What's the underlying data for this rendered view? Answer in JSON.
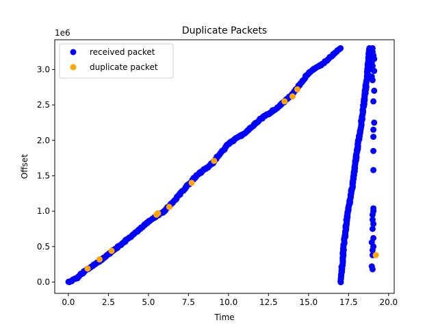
{
  "chart_data": {
    "type": "scatter",
    "title": "Duplicate Packets",
    "xlabel": "Time",
    "ylabel": "Offset",
    "y_multiplier": "1e6",
    "xlim": [
      -0.85,
      20.35
    ],
    "ylim": [
      -160000,
      3420000
    ],
    "x_ticks": [
      "0.0",
      "2.5",
      "5.0",
      "7.5",
      "10.0",
      "12.5",
      "15.0",
      "17.5",
      "20.0"
    ],
    "x_tick_values": [
      0,
      2.5,
      5,
      7.5,
      10,
      12.5,
      15,
      17.5,
      20
    ],
    "y_ticks": [
      "0.0",
      "0.5",
      "1.0",
      "1.5",
      "2.0",
      "2.5",
      "3.0"
    ],
    "y_tick_values": [
      0,
      500000,
      1000000,
      1500000,
      2000000,
      2500000,
      3000000
    ],
    "grid": false,
    "legend_position": "upper-left",
    "series": [
      {
        "name": "received packet",
        "color": "#0000ff",
        "segments": [
          {
            "dense": true,
            "points": [
              [
                0.0,
                0
              ],
              [
                0.5,
                50000
              ],
              [
                1.0,
                150000
              ],
              [
                2.0,
                300000
              ],
              [
                3.0,
                480000
              ],
              [
                4.0,
                660000
              ],
              [
                5.0,
                850000
              ],
              [
                6.0,
                1000000
              ],
              [
                7.0,
                1250000
              ],
              [
                8.0,
                1500000
              ],
              [
                9.0,
                1680000
              ],
              [
                10.0,
                1950000
              ],
              [
                11.0,
                2100000
              ],
              [
                12.0,
                2300000
              ],
              [
                13.0,
                2450000
              ],
              [
                14.0,
                2650000
              ],
              [
                15.0,
                2950000
              ],
              [
                16.0,
                3100000
              ],
              [
                17.0,
                3300000
              ]
            ]
          },
          {
            "dense": true,
            "points": [
              [
                17.0,
                0
              ],
              [
                17.2,
                500000
              ],
              [
                17.4,
                900000
              ],
              [
                17.7,
                1300000
              ],
              [
                18.0,
                1800000
              ],
              [
                18.3,
                2250000
              ],
              [
                18.5,
                2600000
              ],
              [
                18.7,
                3000000
              ],
              [
                18.8,
                3300000
              ]
            ]
          },
          {
            "dense": false,
            "points": [
              [
                19.0,
                3300000
              ],
              [
                19.0,
                3250000
              ],
              [
                19.05,
                3200000
              ],
              [
                19.1,
                3150000
              ],
              [
                18.95,
                3100000
              ],
              [
                19.0,
                3050000
              ],
              [
                19.0,
                3000000
              ],
              [
                19.1,
                2980000
              ],
              [
                18.95,
                2900000
              ],
              [
                19.0,
                2850000
              ],
              [
                19.1,
                2700000
              ],
              [
                19.05,
                2550000
              ],
              [
                19.1,
                2250000
              ],
              [
                19.05,
                2150000
              ],
              [
                19.05,
                2050000
              ],
              [
                19.05,
                1850000
              ],
              [
                19.05,
                1580000
              ],
              [
                19.05,
                1040000
              ],
              [
                19.05,
                1000000
              ],
              [
                19.0,
                950000
              ],
              [
                19.0,
                880000
              ],
              [
                19.05,
                820000
              ],
              [
                19.0,
                750000
              ],
              [
                19.05,
                620000
              ],
              [
                18.95,
                560000
              ],
              [
                19.05,
                500000
              ],
              [
                19.0,
                450000
              ],
              [
                19.0,
                380000
              ],
              [
                18.95,
                220000
              ],
              [
                19.0,
                180000
              ]
            ]
          }
        ]
      },
      {
        "name": "duplicate packet",
        "color": "#ffa500",
        "points": [
          [
            1.2,
            190000
          ],
          [
            1.95,
            320000
          ],
          [
            2.7,
            440000
          ],
          [
            5.5,
            950000
          ],
          [
            5.6,
            970000
          ],
          [
            6.3,
            1060000
          ],
          [
            7.7,
            1400000
          ],
          [
            9.1,
            1710000
          ],
          [
            13.5,
            2550000
          ],
          [
            14.0,
            2620000
          ],
          [
            14.3,
            2720000
          ],
          [
            19.2,
            380000
          ]
        ]
      }
    ]
  }
}
